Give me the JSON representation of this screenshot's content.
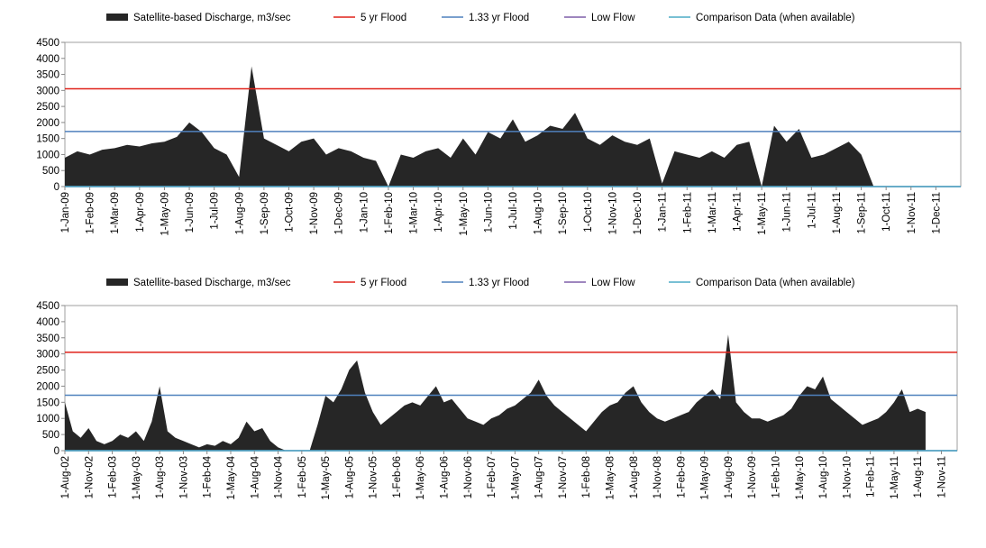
{
  "chart_data": [
    {
      "type": "area",
      "categories": [
        "1-Jan-09",
        null,
        "1-Feb-09",
        null,
        "1-Mar-09",
        null,
        "1-Apr-09",
        null,
        "1-May-09",
        null,
        "1-Jun-09",
        null,
        "1-Jul-09",
        null,
        "1-Aug-09",
        null,
        "1-Sep-09",
        null,
        "1-Oct-09",
        null,
        "1-Nov-09",
        null,
        "1-Dec-09",
        null,
        "1-Jan-10",
        null,
        "1-Feb-10",
        null,
        "1-Mar-10",
        null,
        "1-Apr-10",
        null,
        "1-May-10",
        null,
        "1-Jun-10",
        null,
        "1-Jul-10",
        null,
        "1-Aug-10",
        null,
        "1-Sep-10",
        null,
        "1-Oct-10",
        null,
        "1-Nov-10",
        null,
        "1-Dec-10",
        null,
        "1-Jan-11",
        null,
        "1-Feb-11",
        null,
        "1-Mar-11",
        null,
        "1-Apr-11",
        null,
        "1-May-11",
        null,
        "1-Jun-11",
        null,
        "1-Jul-11",
        null,
        "1-Aug-11",
        null,
        "1-Sep-11",
        null,
        "1-Oct-11",
        null,
        "1-Nov-11",
        null,
        "1-Dec-11",
        null
      ],
      "series": [
        {
          "name": "Satellite-based Discharge, m3/sec",
          "color": "#262626",
          "values": [
            900,
            1100,
            1000,
            1150,
            1200,
            1300,
            1250,
            1350,
            1400,
            1550,
            2000,
            1700,
            1200,
            1000,
            300,
            3750,
            1500,
            1300,
            1100,
            1400,
            1500,
            1000,
            1200,
            1100,
            900,
            800,
            0,
            1000,
            900,
            1100,
            1200,
            900,
            1500,
            1000,
            1700,
            1500,
            2100,
            1400,
            1600,
            1900,
            1800,
            2300,
            1500,
            1300,
            1600,
            1400,
            1300,
            1500,
            100,
            1100,
            1000,
            900,
            1100,
            900,
            1300,
            1400,
            0,
            1900,
            1400,
            1800,
            900,
            1000,
            1200,
            1400,
            1000,
            0,
            null,
            null,
            null,
            null,
            null,
            null
          ]
        }
      ],
      "reference_lines": [
        {
          "name": "5 yr Flood",
          "color": "#e0221a",
          "value": 3050
        },
        {
          "name": "1.33 yr Flood",
          "color": "#4f81bd",
          "value": 1720
        },
        {
          "name": "Low Flow",
          "color": "#7f5fa8",
          "value": 0
        },
        {
          "name": "Comparison Data (when available)",
          "color": "#4bacc6",
          "value": 0
        }
      ],
      "ylim": [
        0,
        4500
      ],
      "yticks": [
        0,
        500,
        1000,
        1500,
        2000,
        2500,
        3000,
        3500,
        4000,
        4500
      ]
    },
    {
      "type": "area",
      "categories": [
        "1-Aug-02",
        null,
        null,
        "1-Nov-02",
        null,
        null,
        "1-Feb-03",
        null,
        null,
        "1-May-03",
        null,
        null,
        "1-Aug-03",
        null,
        null,
        "1-Nov-03",
        null,
        null,
        "1-Feb-04",
        null,
        null,
        "1-May-04",
        null,
        null,
        "1-Aug-04",
        null,
        null,
        "1-Nov-04",
        null,
        null,
        "1-Feb-05",
        null,
        null,
        "1-May-05",
        null,
        null,
        "1-Aug-05",
        null,
        null,
        "1-Nov-05",
        null,
        null,
        "1-Feb-06",
        null,
        null,
        "1-May-06",
        null,
        null,
        "1-Aug-06",
        null,
        null,
        "1-Nov-06",
        null,
        null,
        "1-Feb-07",
        null,
        null,
        "1-May-07",
        null,
        null,
        "1-Aug-07",
        null,
        null,
        "1-Nov-07",
        null,
        null,
        "1-Feb-08",
        null,
        null,
        "1-May-08",
        null,
        null,
        "1-Aug-08",
        null,
        null,
        "1-Nov-08",
        null,
        null,
        "1-Feb-09",
        null,
        null,
        "1-May-09",
        null,
        null,
        "1-Aug-09",
        null,
        null,
        "1-Nov-09",
        null,
        null,
        "1-Feb-10",
        null,
        null,
        "1-May-10",
        null,
        null,
        "1-Aug-10",
        null,
        null,
        "1-Nov-10",
        null,
        null,
        "1-Feb-11",
        null,
        null,
        "1-May-11",
        null,
        null,
        "1-Aug-11",
        null,
        null,
        "1-Nov-11",
        null
      ],
      "series": [
        {
          "name": "Satellite-based Discharge, m3/sec",
          "color": "#262626",
          "values": [
            1500,
            600,
            400,
            700,
            300,
            200,
            300,
            500,
            400,
            600,
            300,
            900,
            2000,
            600,
            400,
            300,
            200,
            100,
            200,
            150,
            300,
            200,
            400,
            900,
            600,
            700,
            300,
            100,
            0,
            0,
            0,
            0,
            800,
            1700,
            1500,
            1900,
            2500,
            2800,
            1800,
            1200,
            800,
            1000,
            1200,
            1400,
            1500,
            1400,
            1700,
            2000,
            1500,
            1600,
            1300,
            1000,
            900,
            800,
            1000,
            1100,
            1300,
            1400,
            1600,
            1800,
            2200,
            1700,
            1400,
            1200,
            1000,
            800,
            600,
            900,
            1200,
            1400,
            1500,
            1800,
            2000,
            1500,
            1200,
            1000,
            900,
            1000,
            1100,
            1200,
            1500,
            1700,
            1900,
            1600,
            3600,
            1500,
            1200,
            1000,
            1000,
            900,
            1000,
            1100,
            1300,
            1700,
            2000,
            1900,
            2300,
            1600,
            1400,
            1200,
            1000,
            800,
            900,
            1000,
            1200,
            1500,
            1900,
            1200,
            1300,
            1200,
            null,
            null,
            null
          ]
        }
      ],
      "reference_lines": [
        {
          "name": "5 yr Flood",
          "color": "#e0221a",
          "value": 3050
        },
        {
          "name": "1.33 yr Flood",
          "color": "#4f81bd",
          "value": 1720
        },
        {
          "name": "Low Flow",
          "color": "#7f5fa8",
          "value": 0
        },
        {
          "name": "Comparison Data (when available)",
          "color": "#4bacc6",
          "value": 0
        }
      ],
      "ylim": [
        0,
        4500
      ],
      "yticks": [
        0,
        500,
        1000,
        1500,
        2000,
        2500,
        3000,
        3500,
        4000,
        4500
      ]
    }
  ]
}
